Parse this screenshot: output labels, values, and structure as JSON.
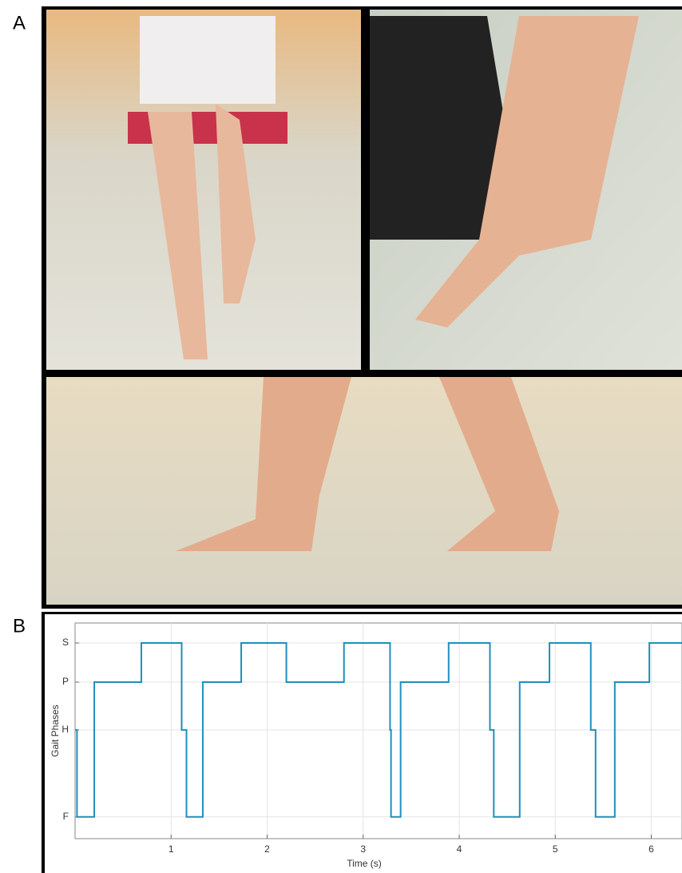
{
  "figure": {
    "panel_labels": [
      "A",
      "B"
    ]
  },
  "chart_data": {
    "type": "step",
    "xlabel": "Time (s)",
    "ylabel": "Gait Phases",
    "x": [
      0,
      0.02,
      0.2,
      0.69,
      1.11,
      1.16,
      1.33,
      1.73,
      2.2,
      2.8,
      3.28,
      3.29,
      3.39,
      3.89,
      4.32,
      4.36,
      4.63,
      4.94,
      5.37,
      5.42,
      5.62,
      5.98,
      6.32
    ],
    "values": [
      2,
      0,
      3.1,
      4,
      2,
      0,
      3.1,
      4,
      3.1,
      4,
      2,
      0,
      3.1,
      4,
      2,
      0,
      3.1,
      4,
      2,
      0,
      3.1,
      4,
      4
    ],
    "color": "#1f8fbf",
    "xlim": [
      0,
      6.32
    ],
    "xticks": [
      1,
      2,
      3,
      4,
      5,
      6
    ],
    "ylim": [
      -0.5,
      4.46
    ],
    "yticks": [
      {
        "value": 0,
        "label": "F"
      },
      {
        "value": 2,
        "label": "H"
      },
      {
        "value": 3.1,
        "label": "P"
      },
      {
        "value": 4,
        "label": "S"
      }
    ],
    "grid": true
  }
}
